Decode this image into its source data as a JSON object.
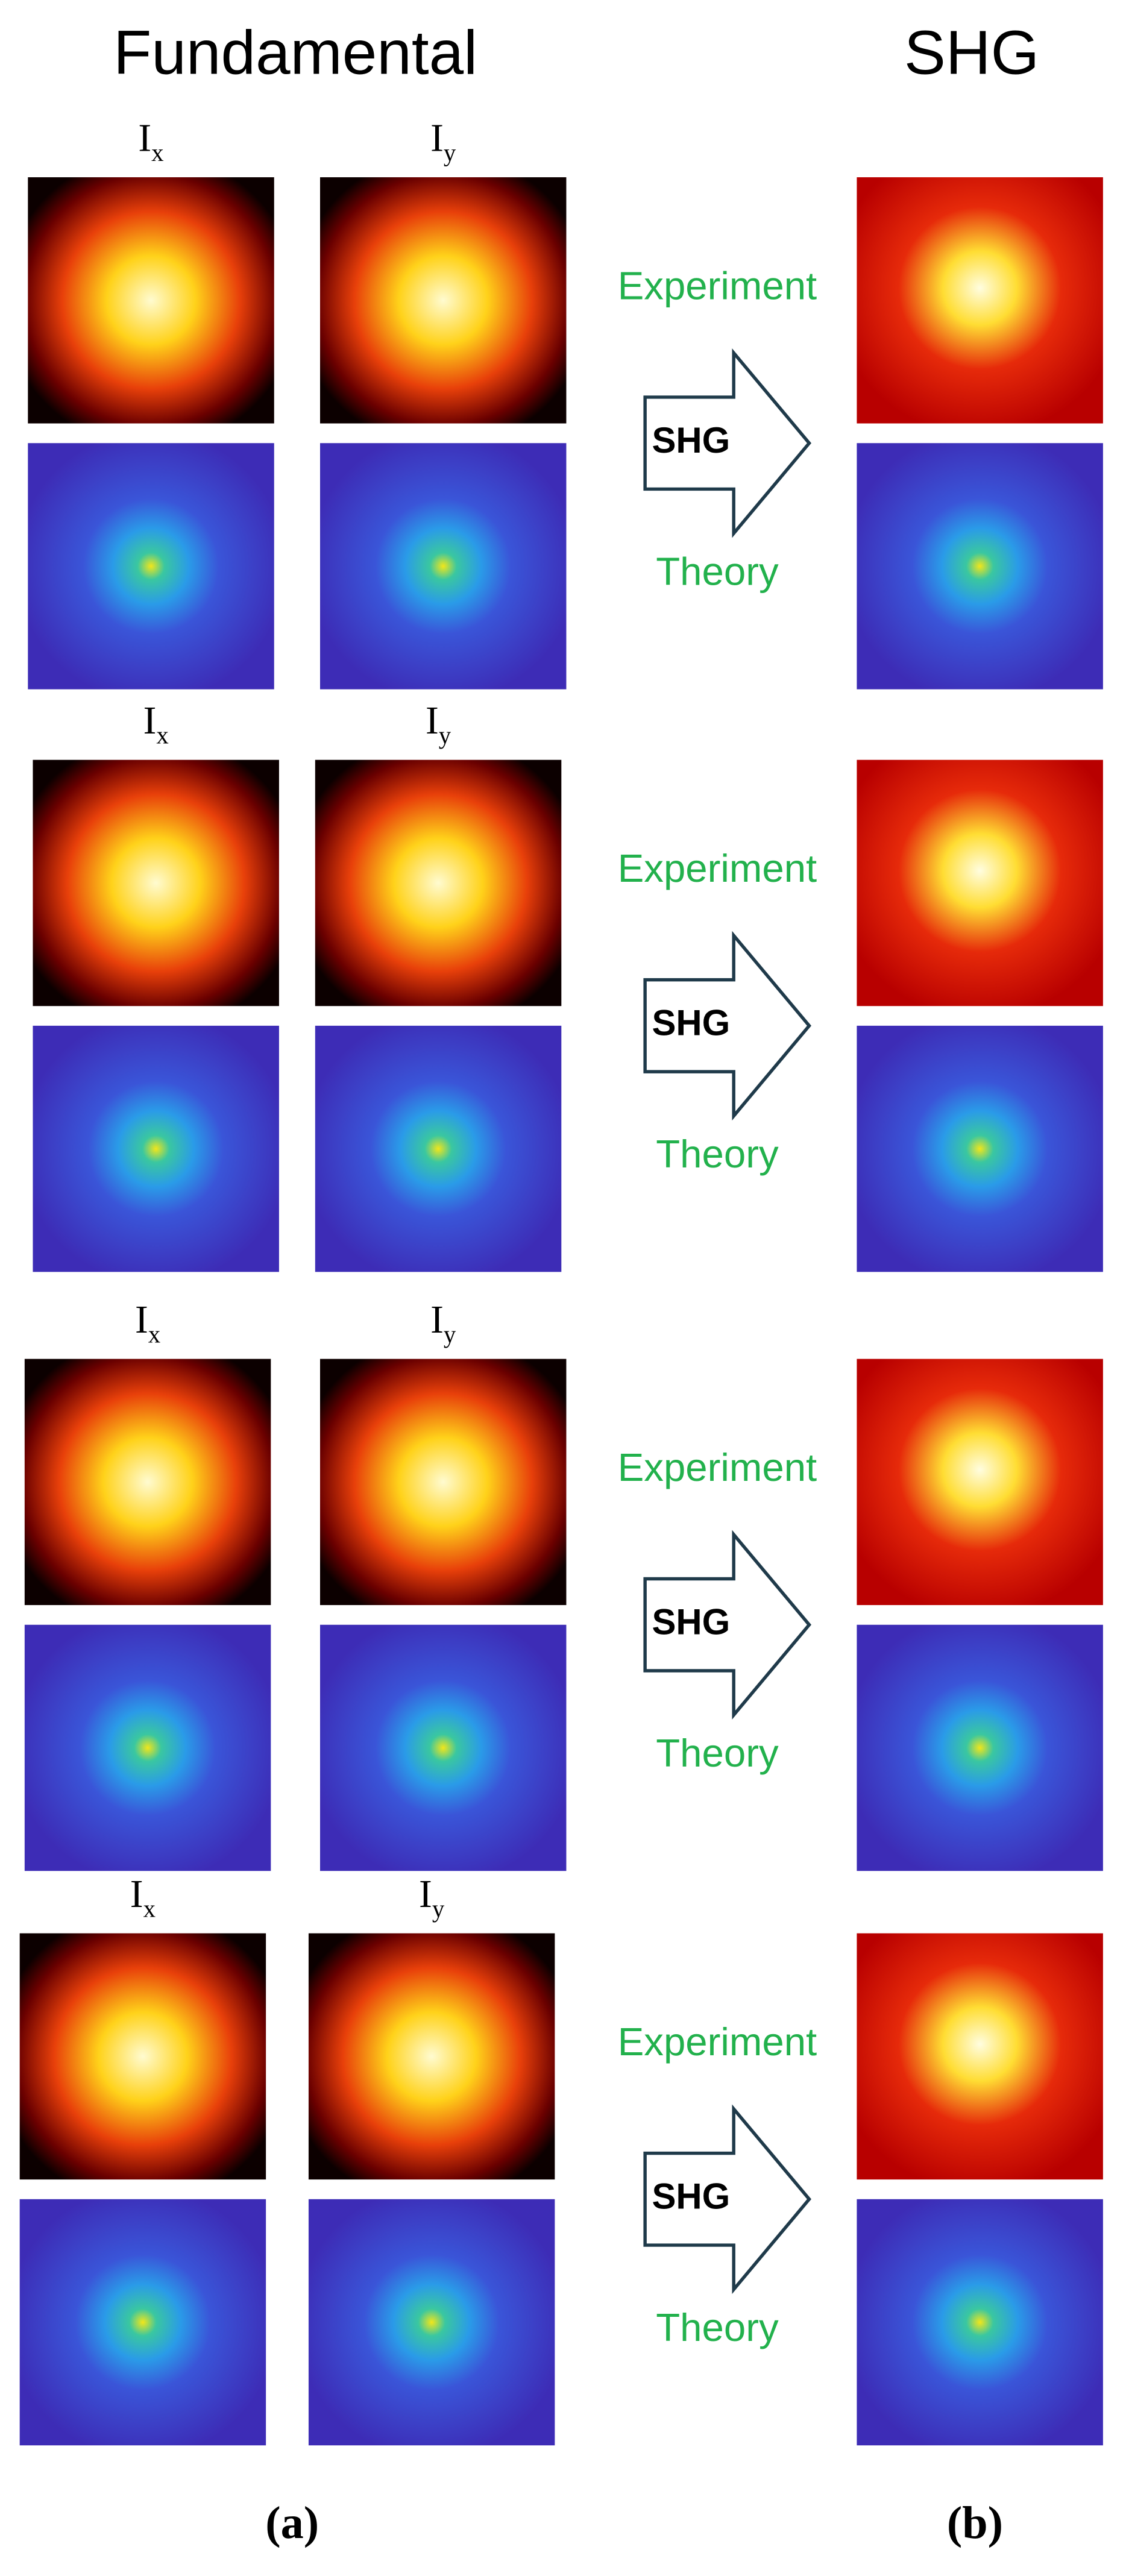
{
  "header": {
    "left": "Fundamental",
    "right": "SHG"
  },
  "rows": [
    {
      "ix": {
        "base": "I",
        "sub": "x"
      },
      "iy": {
        "base": "I",
        "sub": "y"
      },
      "experiment": "Experiment",
      "arrow": "SHG",
      "theory": "Theory"
    },
    {
      "ix": {
        "base": "I",
        "sub": "x"
      },
      "iy": {
        "base": "I",
        "sub": "y"
      },
      "experiment": "Experiment",
      "arrow": "SHG",
      "theory": "Theory"
    },
    {
      "ix": {
        "base": "I",
        "sub": "x"
      },
      "iy": {
        "base": "I",
        "sub": "y"
      },
      "experiment": "Experiment",
      "arrow": "SHG",
      "theory": "Theory"
    },
    {
      "ix": {
        "base": "I",
        "sub": "x"
      },
      "iy": {
        "base": "I",
        "sub": "y"
      },
      "experiment": "Experiment",
      "arrow": "SHG",
      "theory": "Theory"
    }
  ],
  "footer": {
    "left": "(a)",
    "right": "(b)"
  }
}
